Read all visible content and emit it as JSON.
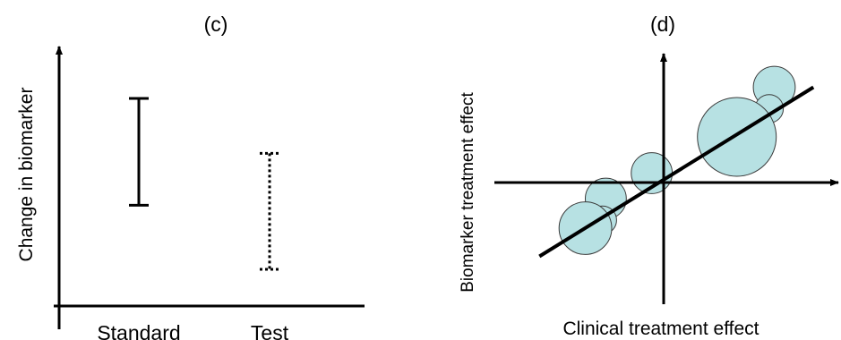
{
  "chart_data": [
    {
      "panel_label": "(c)",
      "type": "errorbar",
      "ylabel": "Change in biomarker",
      "categories": [
        "Standard",
        "Test"
      ],
      "intervals": [
        {
          "category": "Standard",
          "low": 0.33,
          "high": 0.68,
          "line_style": "solid"
        },
        {
          "category": "Test",
          "low": 0.12,
          "high": 0.5,
          "line_style": "dotted"
        }
      ],
      "ylim": [
        0,
        0.85
      ],
      "y_ticks_shown": false,
      "grid": false
    },
    {
      "panel_label": "(d)",
      "type": "scatter",
      "subtype": "bubble",
      "xlabel": "Clinical treatment effect",
      "ylabel": "Biomarker treatment effect",
      "xlim": [
        -1,
        1
      ],
      "ylim": [
        -1,
        1
      ],
      "axes_cross_at_origin": true,
      "grid": false,
      "bubble_color": "#b7e1e3",
      "points": [
        {
          "x": 0.65,
          "y": 0.71,
          "size": 0.024
        },
        {
          "x": 0.62,
          "y": 0.55,
          "size": 0.011
        },
        {
          "x": 0.43,
          "y": 0.34,
          "size": 0.085
        },
        {
          "x": -0.07,
          "y": 0.07,
          "size": 0.023
        },
        {
          "x": -0.34,
          "y": -0.12,
          "size": 0.023
        },
        {
          "x": -0.36,
          "y": -0.28,
          "size": 0.011
        },
        {
          "x": -0.46,
          "y": -0.34,
          "size": 0.038
        }
      ],
      "fit_line": {
        "x": [
          -0.73,
          0.88
        ],
        "y": [
          -0.55,
          0.71
        ]
      }
    }
  ]
}
